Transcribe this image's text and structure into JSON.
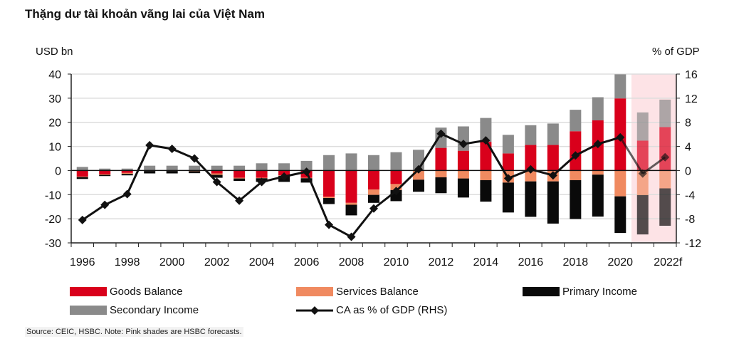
{
  "title": "Thặng dư tài khoản vãng lai của Việt Nam",
  "source": "Source: CEIC, HSBC. Note: Pink shades are HSBC forecasts.",
  "chart_data": {
    "type": "bar",
    "stacked": true,
    "ylabel": "USD bn",
    "y2label": "% of GDP",
    "ylim": [
      -30,
      40
    ],
    "y2lim": [
      -12,
      16
    ],
    "yticks": [
      "40",
      "30",
      "20",
      "10",
      "0",
      "-10",
      "-20",
      "-30"
    ],
    "y2ticks": [
      "16",
      "12",
      "8",
      "4",
      "0",
      "-4",
      "-8",
      "-12"
    ],
    "grid": true,
    "legend": "bottom",
    "forecast_shading": [
      "2021",
      "2022"
    ],
    "categories": [
      "1996",
      "1997",
      "1998",
      "1999",
      "2000",
      "2001",
      "2002",
      "2003",
      "2004",
      "2005",
      "2006",
      "2007",
      "2008",
      "2009",
      "2010",
      "2011",
      "2012",
      "2013",
      "2014",
      "2015",
      "2016",
      "2017",
      "2018",
      "2019",
      "2020",
      "2021",
      "2022f"
    ],
    "xtick_labels": [
      "1996",
      "1998",
      "2000",
      "2002",
      "2004",
      "2006",
      "2008",
      "2010",
      "2012",
      "2014",
      "2016",
      "2018",
      "2020",
      "2022f"
    ],
    "series": [
      {
        "name": "Goods Balance",
        "color": "#d9001b",
        "type": "bar",
        "values": [
          -2.5,
          -1.5,
          -1.0,
          0,
          0,
          0,
          -1.2,
          -3.0,
          -3.0,
          -2.0,
          -3.0,
          -10.9,
          -13.4,
          -7.9,
          -5.6,
          0,
          9.4,
          8.2,
          11.9,
          7.1,
          10.6,
          10.6,
          16.3,
          20.8,
          29.9,
          12.4,
          18.0
        ]
      },
      {
        "name": "Services Balance",
        "color": "#f08a60",
        "type": "bar",
        "values": [
          -0.2,
          -0.3,
          -0.4,
          -0.2,
          -0.2,
          -0.3,
          -0.6,
          -0.3,
          -0.2,
          -0.2,
          -0.2,
          -0.5,
          -0.8,
          -2.2,
          -2.5,
          -3.8,
          -2.8,
          -3.3,
          -4.0,
          -5.0,
          -4.5,
          -4.5,
          -4.0,
          -1.7,
          -10.7,
          -10.2,
          -7.4
        ]
      },
      {
        "name": "Primary Income",
        "color": "#0a0a0a",
        "type": "bar",
        "values": [
          -0.8,
          -0.5,
          -0.6,
          -1.0,
          -1.0,
          -0.8,
          -1.2,
          -1.0,
          -1.5,
          -2.5,
          -1.8,
          -2.5,
          -4.4,
          -3.3,
          -4.6,
          -5.0,
          -6.6,
          -7.9,
          -8.9,
          -12.4,
          -14.7,
          -17.5,
          -16.1,
          -17.4,
          -15.2,
          -16.3,
          -15.5
        ]
      },
      {
        "name": "Secondary Income",
        "color": "#8a8a8a",
        "type": "bar",
        "values": [
          1.5,
          0.8,
          0.8,
          2.0,
          2.0,
          2.0,
          2.0,
          2.0,
          3.0,
          3.0,
          4.0,
          6.4,
          7.1,
          6.4,
          7.6,
          8.6,
          8.4,
          10.1,
          9.9,
          7.7,
          8.2,
          8.9,
          8.9,
          9.6,
          10.0,
          11.7,
          11.4
        ]
      },
      {
        "name": "CA as % of GDP (RHS)",
        "color": "#111111",
        "type": "line",
        "axis": "right",
        "values": [
          -8.2,
          -5.7,
          -3.9,
          4.2,
          3.6,
          2.0,
          -1.9,
          -5.0,
          -1.9,
          -1.0,
          -0.2,
          -9.0,
          -11.0,
          -6.3,
          -3.4,
          0.2,
          6.1,
          4.4,
          5.0,
          -1.3,
          0.2,
          -0.8,
          2.5,
          4.4,
          5.5,
          -0.5,
          2.2
        ]
      }
    ]
  }
}
